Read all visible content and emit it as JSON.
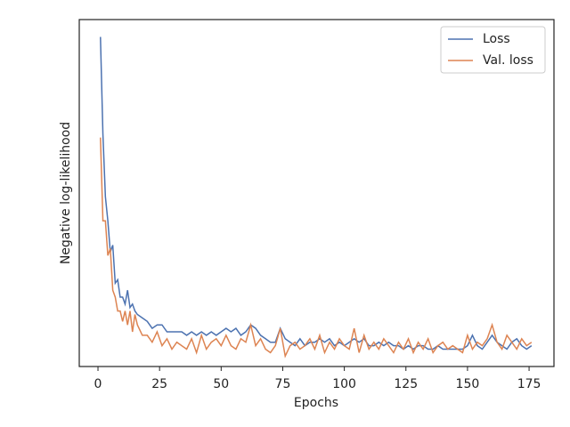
{
  "chart_data": {
    "type": "line",
    "xlabel": "Epochs",
    "ylabel": "Negative log-likelihood",
    "x": [
      1,
      2,
      3,
      4,
      5,
      6,
      7,
      8,
      9,
      10,
      11,
      12,
      13,
      14,
      15,
      16,
      18,
      20,
      22,
      24,
      26,
      28,
      30,
      32,
      34,
      36,
      38,
      40,
      42,
      44,
      46,
      48,
      50,
      52,
      54,
      56,
      58,
      60,
      62,
      64,
      66,
      68,
      70,
      72,
      74,
      76,
      78,
      80,
      82,
      84,
      86,
      88,
      90,
      92,
      94,
      96,
      98,
      100,
      102,
      104,
      106,
      108,
      110,
      112,
      114,
      116,
      118,
      120,
      122,
      124,
      126,
      128,
      130,
      132,
      134,
      136,
      138,
      140,
      142,
      144,
      146,
      148,
      150,
      152,
      154,
      156,
      158,
      160,
      162,
      164,
      166,
      168,
      170,
      172,
      174,
      176
    ],
    "series": [
      {
        "name": "Loss",
        "color": "#4c72b0",
        "values": [
          0.95,
          0.67,
          0.49,
          0.42,
          0.33,
          0.35,
          0.24,
          0.25,
          0.2,
          0.2,
          0.18,
          0.22,
          0.17,
          0.18,
          0.16,
          0.15,
          0.14,
          0.13,
          0.11,
          0.12,
          0.12,
          0.1,
          0.1,
          0.1,
          0.1,
          0.09,
          0.1,
          0.09,
          0.1,
          0.09,
          0.1,
          0.09,
          0.1,
          0.11,
          0.1,
          0.11,
          0.09,
          0.1,
          0.12,
          0.11,
          0.09,
          0.08,
          0.07,
          0.07,
          0.11,
          0.08,
          0.07,
          0.06,
          0.08,
          0.06,
          0.07,
          0.07,
          0.08,
          0.07,
          0.08,
          0.06,
          0.07,
          0.06,
          0.07,
          0.08,
          0.07,
          0.08,
          0.06,
          0.06,
          0.07,
          0.06,
          0.07,
          0.06,
          0.06,
          0.05,
          0.06,
          0.05,
          0.06,
          0.06,
          0.05,
          0.05,
          0.06,
          0.05,
          0.05,
          0.05,
          0.05,
          0.05,
          0.06,
          0.09,
          0.06,
          0.05,
          0.07,
          0.09,
          0.07,
          0.06,
          0.05,
          0.07,
          0.08,
          0.06,
          0.05,
          0.06
        ]
      },
      {
        "name": "Val. loss",
        "color": "#dd8452",
        "values": [
          0.66,
          0.42,
          0.42,
          0.32,
          0.34,
          0.22,
          0.2,
          0.16,
          0.16,
          0.13,
          0.16,
          0.12,
          0.16,
          0.1,
          0.15,
          0.12,
          0.09,
          0.09,
          0.07,
          0.1,
          0.06,
          0.08,
          0.05,
          0.07,
          0.06,
          0.05,
          0.08,
          0.04,
          0.09,
          0.05,
          0.07,
          0.08,
          0.06,
          0.09,
          0.06,
          0.05,
          0.08,
          0.07,
          0.12,
          0.06,
          0.08,
          0.05,
          0.04,
          0.06,
          0.11,
          0.03,
          0.06,
          0.07,
          0.05,
          0.06,
          0.08,
          0.05,
          0.09,
          0.04,
          0.07,
          0.05,
          0.08,
          0.06,
          0.05,
          0.11,
          0.04,
          0.09,
          0.05,
          0.07,
          0.05,
          0.08,
          0.06,
          0.04,
          0.07,
          0.05,
          0.08,
          0.04,
          0.07,
          0.05,
          0.08,
          0.04,
          0.06,
          0.07,
          0.05,
          0.06,
          0.05,
          0.04,
          0.09,
          0.05,
          0.07,
          0.06,
          0.08,
          0.12,
          0.07,
          0.05,
          0.09,
          0.07,
          0.05,
          0.08,
          0.06,
          0.07
        ]
      }
    ],
    "xlim": [
      -7.6,
      185.1
    ],
    "xticks": [
      0,
      25,
      50,
      75,
      100,
      125,
      150,
      175
    ],
    "ylim": [
      0,
      1
    ],
    "legend": "upper right"
  }
}
